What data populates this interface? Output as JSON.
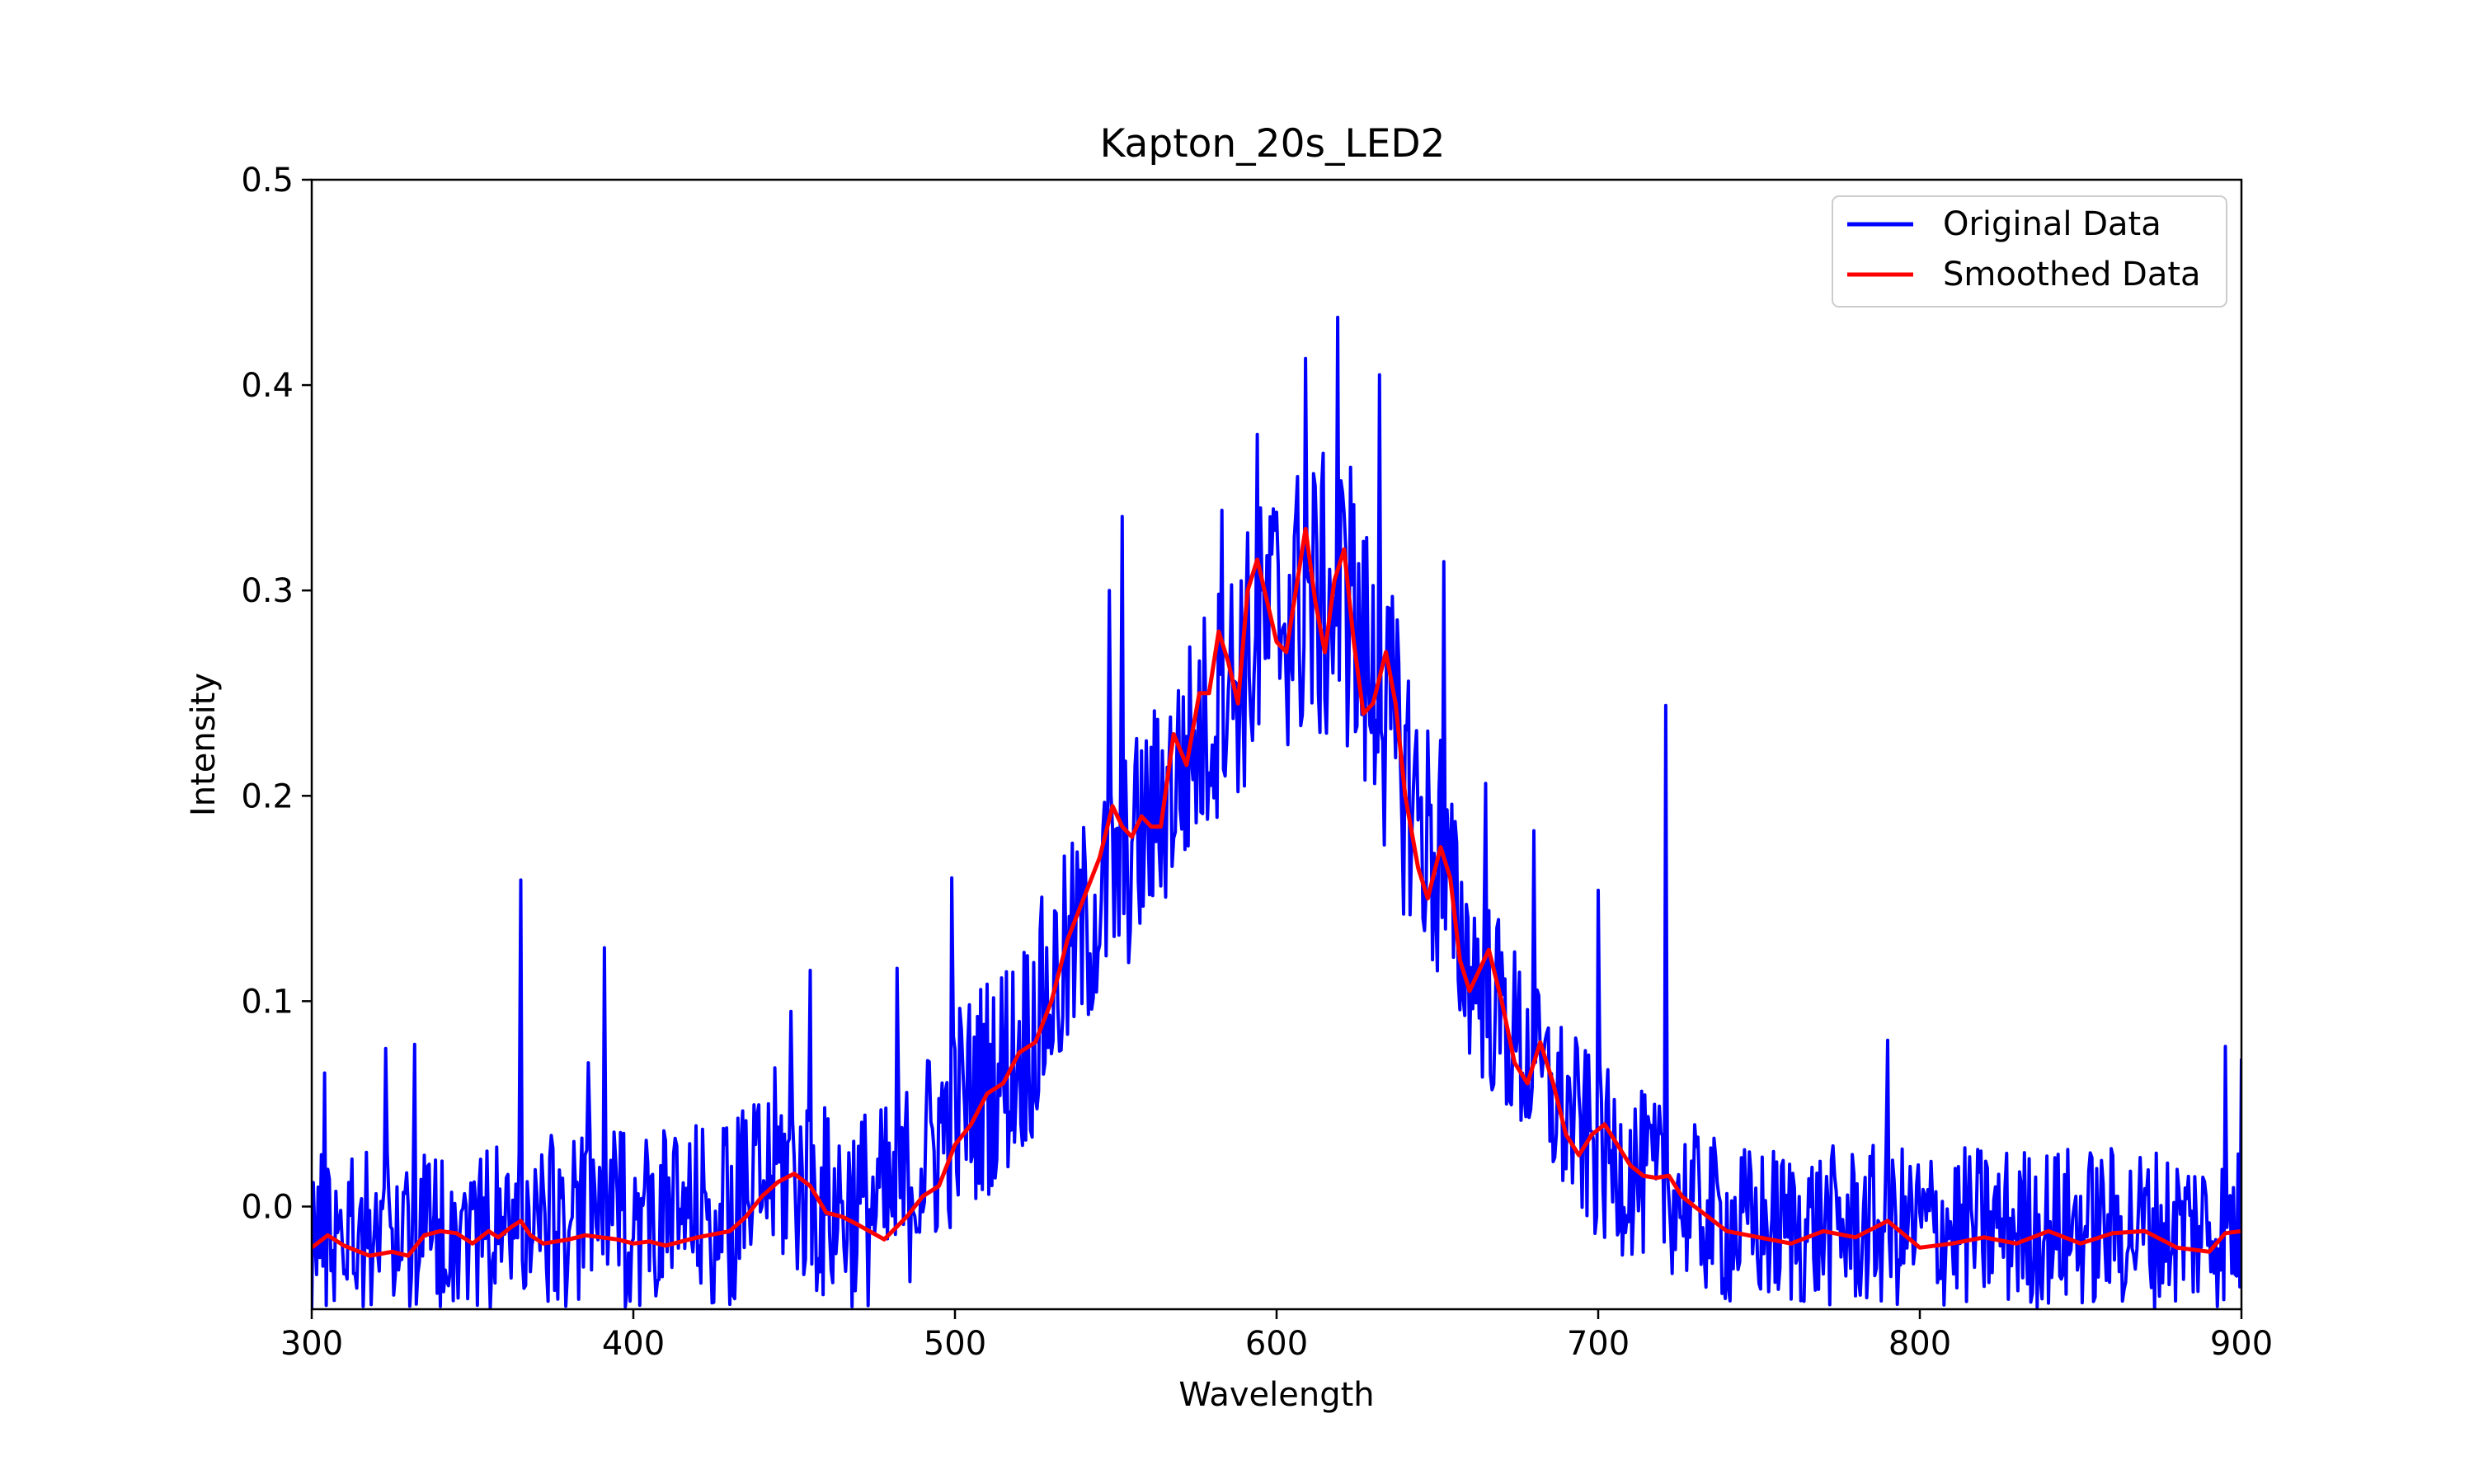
{
  "chart_data": {
    "type": "line",
    "title": "Kapton_20s_LED2",
    "xlabel": "Wavelength",
    "ylabel": "Intensity",
    "xlim": [
      300,
      900
    ],
    "ylim": [
      -0.05,
      0.5
    ],
    "xticks": [
      300,
      400,
      500,
      600,
      700,
      800,
      900
    ],
    "yticks": [
      0.0,
      0.1,
      0.2,
      0.3,
      0.4,
      0.5
    ],
    "ytick_labels": [
      "0.0",
      "0.1",
      "0.2",
      "0.3",
      "0.4",
      "0.5"
    ],
    "legend": {
      "placement": "upper-right",
      "entries": [
        "Original Data",
        "Smoothed Data"
      ]
    },
    "grid": false,
    "series": [
      {
        "name": "Original Data",
        "color": "#0000ff",
        "envelope": {
          "x": [
            300,
            350,
            400,
            430,
            445,
            460,
            480,
            500,
            520,
            540,
            560,
            580,
            600,
            620,
            640,
            660,
            680,
            700,
            720,
            740,
            800,
            900
          ],
          "lower": [
            -0.05,
            -0.05,
            -0.05,
            -0.05,
            -0.03,
            -0.05,
            -0.05,
            -0.01,
            0.02,
            0.08,
            0.13,
            0.18,
            0.22,
            0.22,
            0.14,
            0.07,
            0.02,
            -0.02,
            -0.03,
            -0.05,
            -0.05,
            -0.05
          ],
          "upper": [
            0.03,
            0.03,
            0.04,
            0.04,
            0.07,
            0.05,
            0.05,
            0.1,
            0.13,
            0.19,
            0.24,
            0.3,
            0.36,
            0.37,
            0.28,
            0.17,
            0.11,
            0.07,
            0.05,
            0.03,
            0.03,
            0.03
          ]
        },
        "spikes": [
          {
            "x": 304,
            "y": 0.065
          },
          {
            "x": 323,
            "y": 0.077
          },
          {
            "x": 332,
            "y": 0.079
          },
          {
            "x": 365,
            "y": 0.159
          },
          {
            "x": 386,
            "y": 0.07
          },
          {
            "x": 391,
            "y": 0.126
          },
          {
            "x": 449,
            "y": 0.095
          },
          {
            "x": 455,
            "y": 0.115
          },
          {
            "x": 482,
            "y": 0.116
          },
          {
            "x": 499,
            "y": 0.16
          },
          {
            "x": 548,
            "y": 0.3
          },
          {
            "x": 552,
            "y": 0.336
          },
          {
            "x": 583,
            "y": 0.339
          },
          {
            "x": 594,
            "y": 0.376
          },
          {
            "x": 609,
            "y": 0.413
          },
          {
            "x": 619,
            "y": 0.433
          },
          {
            "x": 623,
            "y": 0.36
          },
          {
            "x": 632,
            "y": 0.405
          },
          {
            "x": 651,
            "y": 0.227
          },
          {
            "x": 652,
            "y": 0.314
          },
          {
            "x": 665,
            "y": 0.206
          },
          {
            "x": 680,
            "y": 0.183
          },
          {
            "x": 700,
            "y": 0.154
          },
          {
            "x": 721,
            "y": 0.244
          },
          {
            "x": 790,
            "y": 0.081
          },
          {
            "x": 895,
            "y": 0.078
          },
          {
            "x": 900,
            "y": 0.072
          }
        ]
      },
      {
        "name": "Smoothed Data",
        "color": "#ff0000",
        "x": [
          300,
          305,
          310,
          318,
          325,
          330,
          335,
          340,
          345,
          350,
          355,
          358,
          362,
          365,
          368,
          372,
          380,
          385,
          390,
          395,
          400,
          405,
          410,
          420,
          430,
          435,
          440,
          445,
          450,
          455,
          460,
          465,
          470,
          478,
          485,
          490,
          495,
          500,
          505,
          510,
          515,
          520,
          525,
          530,
          535,
          540,
          545,
          549,
          552,
          555,
          558,
          561,
          564,
          568,
          572,
          576,
          579,
          582,
          585,
          588,
          591,
          594,
          597,
          600,
          603,
          606,
          609,
          612,
          615,
          618,
          621,
          624,
          627,
          630,
          634,
          637,
          640,
          644,
          647,
          651,
          654,
          657,
          660,
          663,
          666,
          670,
          674,
          678,
          682,
          686,
          690,
          694,
          698,
          702,
          706,
          710,
          714,
          718,
          722,
          726,
          730,
          740,
          750,
          760,
          770,
          780,
          790,
          800,
          810,
          820,
          830,
          840,
          850,
          860,
          870,
          880,
          890,
          895,
          900
        ],
        "y": [
          -0.02,
          -0.014,
          -0.019,
          -0.024,
          -0.022,
          -0.024,
          -0.014,
          -0.012,
          -0.013,
          -0.018,
          -0.012,
          -0.015,
          -0.01,
          -0.007,
          -0.014,
          -0.018,
          -0.016,
          -0.014,
          -0.015,
          -0.016,
          -0.018,
          -0.017,
          -0.019,
          -0.015,
          -0.012,
          -0.005,
          0.005,
          0.012,
          0.016,
          0.01,
          -0.003,
          -0.005,
          -0.009,
          -0.016,
          -0.005,
          0.005,
          0.01,
          0.03,
          0.04,
          0.055,
          0.06,
          0.075,
          0.08,
          0.1,
          0.13,
          0.15,
          0.17,
          0.195,
          0.185,
          0.18,
          0.19,
          0.185,
          0.185,
          0.23,
          0.215,
          0.25,
          0.25,
          0.28,
          0.265,
          0.245,
          0.3,
          0.315,
          0.295,
          0.275,
          0.27,
          0.3,
          0.33,
          0.295,
          0.27,
          0.305,
          0.32,
          0.275,
          0.24,
          0.245,
          0.27,
          0.245,
          0.2,
          0.165,
          0.15,
          0.175,
          0.16,
          0.12,
          0.105,
          0.115,
          0.125,
          0.1,
          0.07,
          0.06,
          0.08,
          0.06,
          0.035,
          0.025,
          0.035,
          0.04,
          0.03,
          0.02,
          0.015,
          0.014,
          0.015,
          0.005,
          0.0,
          -0.012,
          -0.015,
          -0.018,
          -0.012,
          -0.015,
          -0.007,
          -0.02,
          -0.018,
          -0.015,
          -0.018,
          -0.012,
          -0.018,
          -0.013,
          -0.012,
          -0.02,
          -0.022,
          -0.013,
          -0.012
        ]
      }
    ]
  }
}
